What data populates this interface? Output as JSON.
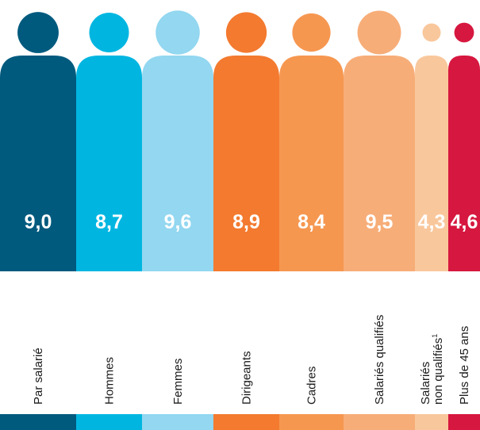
{
  "chart_data": {
    "type": "bar",
    "title": "",
    "xlabel": "",
    "ylabel": "",
    "ylim": [
      0,
      10
    ],
    "grid": false,
    "legend": "none",
    "categories": [
      {
        "lines": [
          "Par salarié"
        ],
        "value": 9.0,
        "value_label": "9,0",
        "color": "#005A7E"
      },
      {
        "lines": [
          "Hommes"
        ],
        "value": 8.7,
        "value_label": "8,7",
        "color": "#00B6E1"
      },
      {
        "lines": [
          "Femmes"
        ],
        "value": 9.6,
        "value_label": "9,6",
        "color": "#93D7F0"
      },
      {
        "lines": [
          "Dirigeants"
        ],
        "value": 8.9,
        "value_label": "8,9",
        "color": "#F37A2F"
      },
      {
        "lines": [
          "Cadres"
        ],
        "value": 8.4,
        "value_label": "8,4",
        "color": "#F69750"
      },
      {
        "lines": [
          "Salariés qualifiés"
        ],
        "value": 9.5,
        "value_label": "9,5",
        "color": "#F7AD78"
      },
      {
        "lines": [
          "Salariés",
          "non qualifiés¹"
        ],
        "value": 4.3,
        "value_label": "4,3",
        "color": "#F9C79C"
      },
      {
        "lines": [
          "Plus de 45 ans"
        ],
        "value": 4.6,
        "value_label": "4,6",
        "color": "#D6173F"
      }
    ]
  }
}
